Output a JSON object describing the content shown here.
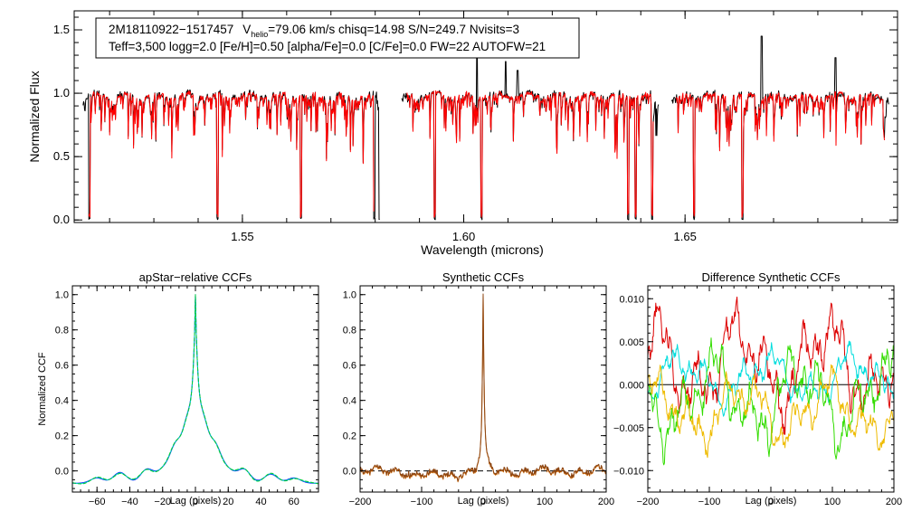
{
  "colors": {
    "spectrum_observed": "#000000",
    "spectrum_model": "#ff0000",
    "ccf_apstar_1": "#0000ff",
    "ccf_apstar_2": "#00c8c8",
    "ccf_apstar_3": "#00cc33",
    "ccf_synth_1": "#e07000",
    "ccf_synth_2": "#8b4513",
    "diff_red": "#dd0000",
    "diff_cyan": "#00dddd",
    "diff_green": "#33dd00",
    "diff_yellow": "#eebb00"
  },
  "header": {
    "line1_star": "2M18110922−1517457",
    "line1_v": "V",
    "line1_sub": "helio",
    "line1_rest": "=79.06 km/s  chisq=14.98  S/N=249.7  Nvisits=3",
    "line2": "Teff=3,500 logg=2.0 [Fe/H]=0.50 [alpha/Fe]=0.0 [C/Fe]=0.0 FW=22 AUTOFW=21"
  },
  "chart_data": [
    {
      "type": "line",
      "title": "",
      "xlabel": "Wavelength (microns)",
      "ylabel": "Normalized Flux",
      "xlim": [
        1.512,
        1.698
      ],
      "ylim": [
        -0.02,
        1.65
      ],
      "xticks": [
        1.55,
        1.6,
        1.65
      ],
      "xtick_labels": [
        "1.55",
        "1.60",
        "1.65"
      ],
      "yticks": [
        0.0,
        0.5,
        1.0,
        1.5
      ],
      "ytick_labels": [
        "0.0",
        "0.5",
        "1.0",
        "1.5"
      ],
      "chips": [
        [
          1.514,
          1.581
        ],
        [
          1.586,
          1.644
        ],
        [
          1.647,
          1.696
        ]
      ],
      "series": [
        {
          "name": "observed",
          "color": "#000000"
        },
        {
          "name": "model",
          "color": "#ff0000"
        }
      ],
      "deep_lines": [
        1.5155,
        1.5444,
        1.5632,
        1.5798,
        1.581,
        1.5935,
        1.604,
        1.6372,
        1.6388,
        1.6425,
        1.652,
        1.663
      ],
      "spikes": [
        [
          1.603,
          1.35
        ],
        [
          1.6095,
          1.25
        ],
        [
          1.6122,
          1.18
        ],
        [
          1.6673,
          1.45
        ],
        [
          1.684,
          1.28
        ]
      ]
    },
    {
      "type": "line",
      "title": "apStar−relative CCFs",
      "xlabel": "Lag (pixels)",
      "ylabel": "Normalized CCF",
      "xlim": [
        -75,
        75
      ],
      "ylim": [
        -0.12,
        1.05
      ],
      "xticks": [
        -60,
        -40,
        -20,
        0,
        20,
        40,
        60
      ],
      "xtick_labels": [
        "−60",
        "−40",
        "−20",
        "0",
        "20",
        "40",
        "60"
      ],
      "yticks": [
        0.0,
        0.2,
        0.4,
        0.6,
        0.8,
        1.0
      ],
      "ytick_labels": [
        "0.0",
        "0.2",
        "0.4",
        "0.6",
        "0.8",
        "1.0"
      ],
      "peak": {
        "x": 0,
        "y": 1.0
      },
      "series": [
        {
          "name": "ccf-1",
          "color": "#0000ff"
        },
        {
          "name": "ccf-2",
          "color": "#00c8c8"
        },
        {
          "name": "ccf-3",
          "color": "#00cc33"
        }
      ]
    },
    {
      "type": "line",
      "title": "Synthetic CCFs",
      "xlabel": "Lag (pixels)",
      "ylabel": "",
      "xlim": [
        -200,
        200
      ],
      "ylim": [
        -0.12,
        1.05
      ],
      "xticks": [
        -200,
        -100,
        0,
        100,
        200
      ],
      "xtick_labels": [
        "−200",
        "−100",
        "0",
        "100",
        "200"
      ],
      "yticks": [
        0.0,
        0.2,
        0.4,
        0.6,
        0.8,
        1.0
      ],
      "ytick_labels": [
        "0.0",
        "0.2",
        "0.4",
        "0.6",
        "0.8",
        "1.0"
      ],
      "reference_line": {
        "y": 0.0,
        "style": "dashed"
      },
      "peak": {
        "x": 0,
        "y": 1.0
      },
      "series": [
        {
          "name": "synthetic-1",
          "color": "#e07000"
        },
        {
          "name": "synthetic-2",
          "color": "#8b4513"
        }
      ]
    },
    {
      "type": "line",
      "title": "Difference Synthetic CCFs",
      "xlabel": "Lag (pixels)",
      "ylabel": "",
      "xlim": [
        -200,
        200
      ],
      "ylim": [
        -0.0125,
        0.0115
      ],
      "xticks": [
        -200,
        -100,
        0,
        100,
        200
      ],
      "xtick_labels": [
        "−200",
        "−100",
        "0",
        "100",
        "200"
      ],
      "yticks": [
        -0.01,
        -0.005,
        0.0,
        0.005,
        0.01
      ],
      "ytick_labels": [
        "−0.010",
        "−0.005",
        "0.000",
        "0.005",
        "0.010"
      ],
      "reference_line": {
        "y": 0.0,
        "style": "solid"
      },
      "series": [
        {
          "name": "red",
          "color": "#dd0000"
        },
        {
          "name": "cyan",
          "color": "#00dddd"
        },
        {
          "name": "green",
          "color": "#33dd00"
        },
        {
          "name": "yellow",
          "color": "#eebb00"
        }
      ]
    }
  ]
}
